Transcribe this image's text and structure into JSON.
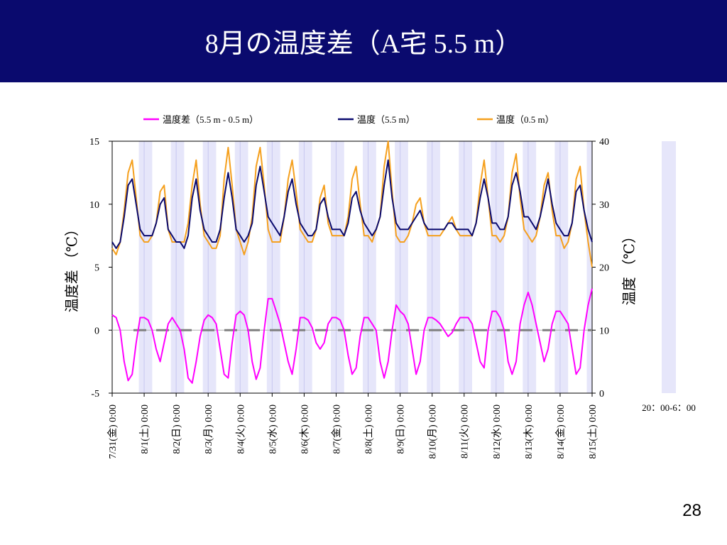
{
  "slide": {
    "title": "8月の温度差（A宅 5.5 m）",
    "page_number": "28"
  },
  "colors": {
    "title_bar": "#0a0a6e",
    "diff": "#ff00ff",
    "temp_55": "#0a0a6e",
    "temp_05": "#f5a01e",
    "night_band": "#e6e6fa",
    "zero_dash": "#808080"
  },
  "chart_data": {
    "type": "line",
    "x": [
      "7/31(金) 0:00",
      "8/1(土) 0:00",
      "8/2(日) 0:00",
      "8/3(月) 0:00",
      "8/4(火) 0:00",
      "8/5(水) 0:00",
      "8/6(木) 0:00",
      "8/7(金) 0:00",
      "8/8(土) 0:00",
      "8/9(日) 0:00",
      "8/10(月) 0:00",
      "8/11(火) 0:00",
      "8/12(水) 0:00",
      "8/13(木) 0:00",
      "8/14(金) 0:00",
      "8/15(土) 0:00"
    ],
    "ylabel_left": "温度差 （℃）",
    "ylabel_right": "温度 （℃）",
    "ylim_left": [
      -5,
      15
    ],
    "yticks_left": [
      "15",
      "10",
      "5",
      "0",
      "-5"
    ],
    "ylim_right": [
      0,
      40
    ],
    "yticks_right": [
      "40",
      "30",
      "20",
      "10",
      "0"
    ],
    "legend_position": "top",
    "side_legend_label": "20：00-6：00",
    "series": [
      {
        "name": "温度差（5.5 m - 0.5 m）",
        "axis": "left",
        "day_values": [
          [
            1.2,
            1.0,
            0.0,
            -2.5,
            -4.0,
            -3.5,
            -1.0,
            1.0
          ],
          [
            1.0,
            0.8,
            0.0,
            -1.5,
            -2.5,
            -1.0,
            0.5,
            1.0
          ],
          [
            0.5,
            0.0,
            -1.5,
            -3.8,
            -4.2,
            -2.5,
            -0.5,
            0.8
          ],
          [
            1.2,
            1.0,
            0.5,
            -1.5,
            -3.5,
            -3.8,
            -1.0,
            1.2
          ],
          [
            1.5,
            1.2,
            0.0,
            -2.5,
            -3.9,
            -3.0,
            0.0,
            2.5
          ],
          [
            2.5,
            1.5,
            0.5,
            -1.0,
            -2.5,
            -3.5,
            -1.5,
            1.0
          ],
          [
            1.0,
            0.8,
            0.2,
            -1.0,
            -1.5,
            -1.0,
            0.5,
            1.0
          ],
          [
            1.0,
            0.8,
            0.0,
            -2.0,
            -3.5,
            -3.0,
            -0.5,
            1.0
          ],
          [
            1.0,
            0.5,
            0.0,
            -2.5,
            -3.8,
            -2.5,
            0.0,
            2.0
          ],
          [
            1.5,
            1.2,
            0.5,
            -1.5,
            -3.5,
            -2.5,
            0.0,
            1.0
          ],
          [
            1.0,
            0.8,
            0.5,
            0.0,
            -0.5,
            -0.2,
            0.5,
            1.0
          ],
          [
            1.0,
            1.0,
            0.5,
            -1.0,
            -2.5,
            -3.0,
            0.0,
            1.5
          ],
          [
            1.5,
            1.0,
            0.0,
            -2.5,
            -3.5,
            -2.5,
            0.5,
            2.0
          ],
          [
            3.0,
            2.0,
            0.5,
            -1.0,
            -2.5,
            -1.5,
            0.5,
            1.5
          ],
          [
            1.5,
            1.0,
            0.5,
            -1.5,
            -3.5,
            -3.0,
            0.0,
            2.0
          ]
        ],
        "end_value": 3.3
      },
      {
        "name": "温度（5.5 m）",
        "axis": "right",
        "day_values": [
          [
            24,
            23,
            24,
            28,
            33,
            34,
            30,
            26
          ],
          [
            25,
            25,
            25,
            27,
            30,
            31,
            26,
            25
          ],
          [
            24,
            24,
            23,
            25,
            31,
            34,
            29,
            26
          ],
          [
            25,
            24,
            24,
            26,
            31,
            35,
            31,
            26
          ],
          [
            25,
            24,
            25,
            27,
            33,
            36,
            32,
            28
          ],
          [
            27,
            26,
            25,
            28,
            32,
            34,
            30,
            27
          ],
          [
            26,
            25,
            25,
            26,
            30,
            31,
            28,
            26
          ],
          [
            26,
            26,
            25,
            27,
            31,
            32,
            29,
            27
          ],
          [
            26,
            25,
            26,
            28,
            33,
            37,
            31,
            27
          ],
          [
            26,
            26,
            26,
            27,
            28,
            29,
            27,
            26
          ],
          [
            26,
            26,
            26,
            26,
            27,
            27,
            26,
            26
          ],
          [
            26,
            26,
            25,
            27,
            31,
            34,
            31,
            27
          ],
          [
            27,
            26,
            26,
            28,
            33,
            35,
            32,
            28
          ],
          [
            28,
            27,
            26,
            28,
            31,
            34,
            30,
            27
          ],
          [
            26,
            25,
            25,
            27,
            32,
            33,
            29,
            26
          ]
        ],
        "end_value": 24
      },
      {
        "name": "温度（0.5 m）",
        "axis": "right",
        "day_values": [
          [
            23,
            22,
            24,
            29,
            35,
            37,
            31,
            25
          ],
          [
            24,
            24,
            25,
            27,
            32,
            33,
            26,
            24
          ],
          [
            24,
            24,
            24,
            27,
            33,
            37,
            30,
            25
          ],
          [
            24,
            23,
            23,
            25,
            34,
            39,
            33,
            26
          ],
          [
            24,
            22,
            24,
            28,
            36,
            39,
            33,
            26
          ],
          [
            24,
            24,
            24,
            28,
            34,
            37,
            32,
            26
          ],
          [
            25,
            24,
            24,
            26,
            31,
            33,
            27,
            25
          ],
          [
            25,
            25,
            25,
            28,
            34,
            36,
            30,
            25
          ],
          [
            25,
            24,
            26,
            28,
            36,
            40,
            32,
            25
          ],
          [
            24,
            24,
            25,
            27,
            30,
            31,
            27,
            25
          ],
          [
            25,
            25,
            25,
            26,
            27,
            28,
            26,
            25
          ],
          [
            25,
            25,
            25,
            27,
            33,
            37,
            31,
            25
          ],
          [
            25,
            24,
            25,
            28,
            35,
            38,
            31,
            26
          ],
          [
            25,
            24,
            25,
            28,
            33,
            35,
            29,
            25
          ],
          [
            25,
            23,
            24,
            27,
            34,
            36,
            29,
            24
          ]
        ],
        "end_value": 20
      }
    ],
    "night_bands_hours": [
      20,
      6
    ],
    "zero_reference_line": 0
  }
}
